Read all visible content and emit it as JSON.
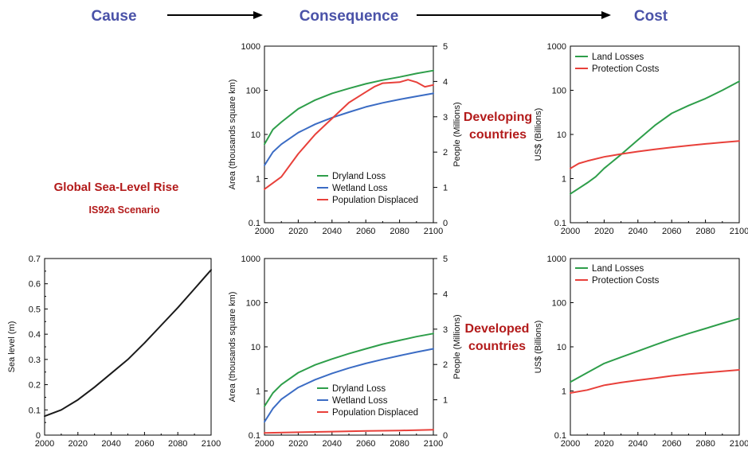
{
  "headers": {
    "cause": "Cause",
    "consequence": "Consequence",
    "cost": "Cost"
  },
  "labels": {
    "scenario_title": "Global Sea-Level Rise",
    "scenario_subtitle": "IS92a Scenario",
    "developing": [
      "Developing",
      "countries"
    ],
    "developed": [
      "Developed",
      "countries"
    ]
  },
  "colors": {
    "header": "#4a52a8",
    "region_label": "#b31b1b",
    "green": "#2e9e4a",
    "blue": "#3b6cc4",
    "red": "#e8403a",
    "black": "#1a1a1a"
  },
  "chart_data": [
    {
      "id": "sea-level",
      "type": "line",
      "xlabel": "",
      "ylabel": "Sea level (m)",
      "xlim": [
        2000,
        2100
      ],
      "ylim": [
        0,
        0.7
      ],
      "ylog": false,
      "xticks": [
        2000,
        2020,
        2040,
        2060,
        2080,
        2100
      ],
      "yticks": [
        0,
        0.1,
        0.2,
        0.3,
        0.4,
        0.5,
        0.6,
        0.7
      ],
      "ytick_labels": [
        "0",
        "0.1",
        "0.2",
        "0.3",
        "0.4",
        "0.5",
        "0.6",
        "0.7"
      ],
      "series": [
        {
          "color": "#1a1a1a",
          "x": [
            2000,
            2010,
            2020,
            2030,
            2040,
            2050,
            2060,
            2070,
            2080,
            2090,
            2100
          ],
          "y": [
            0.075,
            0.1,
            0.14,
            0.19,
            0.245,
            0.3,
            0.365,
            0.435,
            0.505,
            0.58,
            0.655
          ]
        }
      ],
      "legend": []
    },
    {
      "id": "developing-consequence",
      "type": "line",
      "xlabel": "",
      "ylabel": "Area (thousands square km)",
      "y2label": "People (Millions)",
      "xlim": [
        2000,
        2100
      ],
      "ylim": [
        0.1,
        1000
      ],
      "ylog": true,
      "y2lim": [
        0,
        5
      ],
      "xticks": [
        2000,
        2020,
        2040,
        2060,
        2080,
        2100
      ],
      "yticks": [
        0.1,
        1,
        10,
        100,
        1000
      ],
      "ytick_labels": [
        "0.1",
        "1",
        "10",
        "100",
        "1000"
      ],
      "y2ticks": [
        0,
        1,
        2,
        3,
        4,
        5
      ],
      "series": [
        {
          "name": "Dryland Loss",
          "color": "#2e9e4a",
          "axis": "left",
          "x": [
            2000,
            2005,
            2010,
            2020,
            2030,
            2040,
            2050,
            2060,
            2070,
            2080,
            2090,
            2100
          ],
          "y": [
            6,
            13,
            19,
            38,
            60,
            85,
            110,
            140,
            170,
            200,
            240,
            280
          ]
        },
        {
          "name": "Wetland Loss",
          "color": "#3b6cc4",
          "axis": "left",
          "x": [
            2000,
            2005,
            2010,
            2020,
            2030,
            2040,
            2050,
            2060,
            2070,
            2080,
            2090,
            2100
          ],
          "y": [
            2,
            4,
            6,
            11,
            17,
            24,
            32,
            42,
            52,
            62,
            73,
            85
          ]
        },
        {
          "name": "Population Displaced",
          "color": "#e8403a",
          "axis": "right",
          "x": [
            2000,
            2010,
            2020,
            2030,
            2040,
            2050,
            2060,
            2065,
            2070,
            2080,
            2085,
            2090,
            2095,
            2100
          ],
          "y": [
            0.95,
            1.3,
            1.95,
            2.5,
            2.95,
            3.4,
            3.7,
            3.85,
            3.95,
            3.98,
            4.05,
            3.98,
            3.85,
            3.9
          ]
        }
      ],
      "legend": [
        "Dryland Loss",
        "Wetland Loss",
        "Population Displaced"
      ]
    },
    {
      "id": "developing-cost",
      "type": "line",
      "xlabel": "",
      "ylabel": "US$ (Billions)",
      "xlim": [
        2000,
        2100
      ],
      "ylim": [
        0.1,
        1000
      ],
      "ylog": true,
      "xticks": [
        2000,
        2020,
        2040,
        2060,
        2080,
        2100
      ],
      "yticks": [
        0.1,
        1,
        10,
        100,
        1000
      ],
      "ytick_labels": [
        "0.1",
        "1",
        "10",
        "100",
        "1000"
      ],
      "series": [
        {
          "name": "Land Losses",
          "color": "#2e9e4a",
          "x": [
            2000,
            2005,
            2010,
            2015,
            2020,
            2030,
            2040,
            2050,
            2060,
            2070,
            2080,
            2090,
            2100
          ],
          "y": [
            0.45,
            0.6,
            0.8,
            1.1,
            1.7,
            3.5,
            7.5,
            16,
            30,
            45,
            65,
            100,
            160
          ]
        },
        {
          "name": "Protection Costs",
          "color": "#e8403a",
          "x": [
            2000,
            2005,
            2010,
            2020,
            2030,
            2040,
            2050,
            2060,
            2070,
            2080,
            2090,
            2100
          ],
          "y": [
            1.7,
            2.2,
            2.5,
            3.1,
            3.6,
            4.1,
            4.6,
            5.1,
            5.6,
            6.1,
            6.6,
            7.1
          ]
        }
      ],
      "legend": [
        "Land Losses",
        "Protection Costs"
      ]
    },
    {
      "id": "developed-consequence",
      "type": "line",
      "xlabel": "",
      "ylabel": "Area (thousands square km)",
      "y2label": "People (Millions)",
      "xlim": [
        2000,
        2100
      ],
      "ylim": [
        0.1,
        1000
      ],
      "ylog": true,
      "y2lim": [
        0,
        5
      ],
      "xticks": [
        2000,
        2020,
        2040,
        2060,
        2080,
        2100
      ],
      "yticks": [
        0.1,
        1,
        10,
        100,
        1000
      ],
      "ytick_labels": [
        "0.1",
        "1",
        "10",
        "100",
        "1000"
      ],
      "y2ticks": [
        0,
        1,
        2,
        3,
        4,
        5
      ],
      "series": [
        {
          "name": "Dryland Loss",
          "color": "#2e9e4a",
          "axis": "left",
          "x": [
            2000,
            2005,
            2010,
            2020,
            2030,
            2040,
            2050,
            2060,
            2070,
            2080,
            2090,
            2100
          ],
          "y": [
            0.45,
            0.9,
            1.4,
            2.6,
            3.9,
            5.3,
            7,
            9,
            11.5,
            14,
            17,
            20
          ]
        },
        {
          "name": "Wetland Loss",
          "color": "#3b6cc4",
          "axis": "left",
          "x": [
            2000,
            2005,
            2010,
            2020,
            2030,
            2040,
            2050,
            2060,
            2070,
            2080,
            2090,
            2100
          ],
          "y": [
            0.2,
            0.4,
            0.65,
            1.2,
            1.8,
            2.5,
            3.3,
            4.2,
            5.2,
            6.3,
            7.6,
            9
          ]
        },
        {
          "name": "Population Displaced",
          "color": "#e8403a",
          "axis": "right",
          "x": [
            2000,
            2020,
            2040,
            2060,
            2080,
            2100
          ],
          "y": [
            0.06,
            0.08,
            0.1,
            0.12,
            0.13,
            0.15
          ]
        }
      ],
      "legend": [
        "Dryland Loss",
        "Wetland Loss",
        "Population Displaced"
      ]
    },
    {
      "id": "developed-cost",
      "type": "line",
      "xlabel": "",
      "ylabel": "US$ (Billions)",
      "xlim": [
        2000,
        2100
      ],
      "ylim": [
        0.1,
        1000
      ],
      "ylog": true,
      "xticks": [
        2000,
        2020,
        2040,
        2060,
        2080,
        2100
      ],
      "yticks": [
        0.1,
        1,
        10,
        100,
        1000
      ],
      "ytick_labels": [
        "0.1",
        "1",
        "10",
        "100",
        "1000"
      ],
      "series": [
        {
          "name": "Land Losses",
          "color": "#2e9e4a",
          "x": [
            2000,
            2010,
            2020,
            2030,
            2040,
            2050,
            2060,
            2070,
            2080,
            2090,
            2100
          ],
          "y": [
            1.6,
            2.6,
            4.2,
            5.8,
            8,
            11,
            15,
            20,
            26,
            34,
            44
          ]
        },
        {
          "name": "Protection Costs",
          "color": "#e8403a",
          "x": [
            2000,
            2010,
            2020,
            2030,
            2040,
            2050,
            2060,
            2070,
            2080,
            2090,
            2100
          ],
          "y": [
            0.9,
            1.05,
            1.35,
            1.55,
            1.75,
            1.95,
            2.2,
            2.4,
            2.6,
            2.8,
            3.0
          ]
        }
      ],
      "legend": [
        "Land Losses",
        "Protection Costs"
      ]
    }
  ]
}
